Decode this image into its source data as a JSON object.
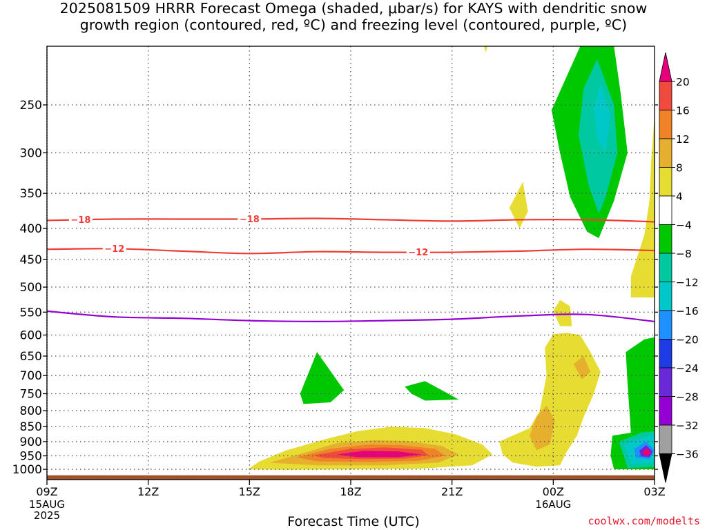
{
  "title_line1": "2025081509 HRRR Forecast Omega (shaded, μbar/s) for KAYS with dendritic snow",
  "title_line2": "growth region (contoured, red, ºC) and freezing level (contoured, purple, ºC)",
  "xlabel": "Forecast Time (UTC)",
  "credit": "coolwx.com/modelts",
  "colors": {
    "dgz_contour": "#ee3b36",
    "freezing_contour": "#9400d3",
    "terrain": "#a0522d",
    "grid": "#555555"
  },
  "chart_data": {
    "type": "heatmap",
    "x_axis": {
      "range_hours": [
        0,
        18
      ],
      "ticks": [
        {
          "hour": 0,
          "label": "09Z",
          "sub": [
            "15AUG",
            "2025"
          ]
        },
        {
          "hour": 3,
          "label": "12Z",
          "sub": []
        },
        {
          "hour": 6,
          "label": "15Z",
          "sub": []
        },
        {
          "hour": 9,
          "label": "18Z",
          "sub": []
        },
        {
          "hour": 12,
          "label": "21Z",
          "sub": []
        },
        {
          "hour": 15,
          "label": "00Z",
          "sub": [
            "16AUG"
          ]
        },
        {
          "hour": 18,
          "label": "03Z",
          "sub": []
        }
      ]
    },
    "y_axis": {
      "scale": "log",
      "range_hpa": [
        1040,
        200
      ],
      "ticks": [
        250,
        300,
        350,
        400,
        450,
        500,
        550,
        600,
        650,
        700,
        750,
        800,
        850,
        900,
        950,
        1000
      ],
      "surface_hpa": 1023
    },
    "colorbar": {
      "boundaries": [
        -36,
        -32,
        -28,
        -24,
        -20,
        -16,
        -12,
        -8,
        -4,
        4,
        8,
        12,
        16,
        20
      ],
      "labels": [
        "20",
        "16",
        "12",
        "8",
        "4",
        "−4",
        "−8",
        "−12",
        "−16",
        "−20",
        "−24",
        "−28",
        "−32",
        "−36"
      ],
      "colors": [
        "#000000",
        "#a0a0a0",
        "#9400d3",
        "#6a28d8",
        "#1e3ce6",
        "#1e90ff",
        "#00c8c8",
        "#00c8a0",
        "#00c800",
        "#ffffff",
        "#e6dc32",
        "#e6af2d",
        "#f08228",
        "#f04b3c",
        "#e6007a"
      ],
      "under_color": "#000000",
      "over_color": "#e6007a"
    },
    "omega_shapes": [
      {
        "color": "#e6dc32",
        "pts": [
          [
            5.95,
            1000
          ],
          [
            6.3,
            970
          ],
          [
            7.1,
            930
          ],
          [
            8.3,
            890
          ],
          [
            9.2,
            865
          ],
          [
            10.2,
            850
          ],
          [
            11.2,
            855
          ],
          [
            12.1,
            875
          ],
          [
            12.9,
            910
          ],
          [
            13.2,
            945
          ],
          [
            12.6,
            985
          ],
          [
            11,
            998
          ],
          [
            9,
            1000
          ],
          [
            7,
            1002
          ]
        ]
      },
      {
        "color": "#e6af2d",
        "pts": [
          [
            6.6,
            975
          ],
          [
            7.6,
            940
          ],
          [
            8.6,
            905
          ],
          [
            9.7,
            895
          ],
          [
            10.7,
            898
          ],
          [
            11.7,
            915
          ],
          [
            12.2,
            945
          ],
          [
            11.6,
            975
          ],
          [
            10,
            985
          ],
          [
            8,
            985
          ]
        ]
      },
      {
        "color": "#f08228",
        "pts": [
          [
            7.4,
            955
          ],
          [
            8.4,
            925
          ],
          [
            9.5,
            910
          ],
          [
            10.5,
            912
          ],
          [
            11.5,
            925
          ],
          [
            11.8,
            950
          ],
          [
            11,
            968
          ],
          [
            9.5,
            972
          ],
          [
            8,
            970
          ]
        ]
      },
      {
        "color": "#f04b3c",
        "pts": [
          [
            7.9,
            948
          ],
          [
            8.9,
            927
          ],
          [
            10,
            920
          ],
          [
            11.1,
            928
          ],
          [
            11.3,
            948
          ],
          [
            10.6,
            960
          ],
          [
            9.3,
            962
          ],
          [
            8.2,
            958
          ]
        ]
      },
      {
        "color": "#e6007a",
        "pts": [
          [
            8.6,
            945
          ],
          [
            9.4,
            932
          ],
          [
            10.4,
            934
          ],
          [
            11.1,
            945
          ],
          [
            10.4,
            955
          ],
          [
            9.2,
            955
          ]
        ]
      },
      {
        "color": "#e6dc32",
        "pts": [
          [
            13.4,
            900
          ],
          [
            14.3,
            855
          ],
          [
            14.6,
            800
          ],
          [
            14.8,
            700
          ],
          [
            14.75,
            630
          ],
          [
            15,
            598
          ],
          [
            15.4,
            595
          ],
          [
            15.8,
            600
          ],
          [
            16.1,
            640
          ],
          [
            16.4,
            690
          ],
          [
            16.2,
            750
          ],
          [
            15.9,
            820
          ],
          [
            15.7,
            880
          ],
          [
            15.4,
            935
          ],
          [
            15.2,
            985
          ],
          [
            14.5,
            990
          ],
          [
            13.8,
            975
          ],
          [
            13.5,
            945
          ]
        ]
      },
      {
        "color": "#e6af2d",
        "pts": [
          [
            14.3,
            880
          ],
          [
            14.5,
            820
          ],
          [
            14.8,
            785
          ],
          [
            15.05,
            830
          ],
          [
            14.9,
            910
          ],
          [
            14.5,
            930
          ]
        ]
      },
      {
        "color": "#e6af2d",
        "pts": [
          [
            15.6,
            670
          ],
          [
            15.9,
            650
          ],
          [
            16.1,
            690
          ],
          [
            15.85,
            710
          ]
        ]
      },
      {
        "color": "#e6dc32",
        "pts": [
          [
            15,
            548
          ],
          [
            15.2,
            525
          ],
          [
            15.5,
            538
          ],
          [
            15.55,
            580
          ],
          [
            15.2,
            580
          ]
        ]
      },
      {
        "color": "#00c800",
        "pts": [
          [
            7.5,
            750
          ],
          [
            8.0,
            640
          ],
          [
            8.8,
            740
          ],
          [
            8.4,
            775
          ],
          [
            7.6,
            780
          ]
        ]
      },
      {
        "color": "#00c800",
        "pts": [
          [
            10.6,
            730
          ],
          [
            11.2,
            715
          ],
          [
            11.7,
            740
          ],
          [
            12.2,
            767
          ],
          [
            11.2,
            770
          ],
          [
            10.8,
            750
          ]
        ]
      },
      {
        "color": "#e6dc32",
        "pts": [
          [
            12.8,
            185
          ],
          [
            13.2,
            185
          ],
          [
            13.0,
            205
          ]
        ]
      },
      {
        "color": "#e6dc32",
        "pts": [
          [
            13.7,
            370
          ],
          [
            14.1,
            335
          ],
          [
            14.25,
            375
          ],
          [
            14.0,
            400
          ]
        ]
      },
      {
        "color": "#00c800",
        "pts": [
          [
            15.8,
            200
          ],
          [
            16.8,
            200
          ],
          [
            17.0,
            240
          ],
          [
            17.2,
            300
          ],
          [
            16.8,
            360
          ],
          [
            16.35,
            415
          ],
          [
            16.0,
            405
          ],
          [
            15.5,
            355
          ],
          [
            15.2,
            300
          ],
          [
            14.95,
            255
          ]
        ]
      },
      {
        "color": "#00c8a0",
        "pts": [
          [
            16.3,
            210
          ],
          [
            16.8,
            250
          ],
          [
            16.9,
            300
          ],
          [
            16.55,
            355
          ],
          [
            16.35,
            378
          ],
          [
            16.05,
            340
          ],
          [
            15.75,
            280
          ],
          [
            15.9,
            235
          ]
        ]
      },
      {
        "color": "#00c8c8",
        "pts": [
          [
            16.4,
            230
          ],
          [
            16.7,
            260
          ],
          [
            16.55,
            300
          ],
          [
            16.3,
            285
          ],
          [
            16.2,
            255
          ]
        ]
      },
      {
        "color": "#e6dc32",
        "pts": [
          [
            17.9,
            310
          ],
          [
            18,
            260
          ],
          [
            18,
            520
          ],
          [
            17.3,
            520
          ],
          [
            17.3,
            480
          ],
          [
            17.7,
            410
          ],
          [
            17.85,
            360
          ]
        ]
      },
      {
        "color": "#00c800",
        "pts": [
          [
            17.3,
            870
          ],
          [
            17.2,
            720
          ],
          [
            17.15,
            640
          ],
          [
            17.7,
            610
          ],
          [
            18,
            605
          ],
          [
            18,
            1000
          ],
          [
            16.8,
            1000
          ],
          [
            16.7,
            950
          ],
          [
            16.75,
            880
          ]
        ]
      },
      {
        "color": "#00c8a0",
        "pts": [
          [
            16.95,
            900
          ],
          [
            17.6,
            870
          ],
          [
            18,
            865
          ],
          [
            18,
            990
          ],
          [
            17.2,
            995
          ]
        ]
      },
      {
        "color": "#00c8c8",
        "pts": [
          [
            17.1,
            910
          ],
          [
            17.7,
            885
          ],
          [
            18,
            882
          ],
          [
            18,
            975
          ],
          [
            17.3,
            980
          ]
        ]
      },
      {
        "color": "#1e90ff",
        "pts": [
          [
            17.4,
            925
          ],
          [
            17.75,
            900
          ],
          [
            18.0,
            930
          ],
          [
            17.85,
            962
          ],
          [
            17.45,
            958
          ]
        ]
      },
      {
        "color": "#6a28d8",
        "pts": [
          [
            17.55,
            932
          ],
          [
            17.75,
            912
          ],
          [
            17.95,
            935
          ],
          [
            17.85,
            955
          ],
          [
            17.6,
            952
          ]
        ]
      },
      {
        "color": "#e6007a",
        "pts": [
          [
            17.65,
            936
          ],
          [
            17.77,
            922
          ],
          [
            17.9,
            937
          ],
          [
            17.82,
            950
          ],
          [
            17.7,
            948
          ]
        ]
      }
    ],
    "contours": [
      {
        "name": "-18",
        "color": "#ee3b36",
        "labels": [
          {
            "text": "−18",
            "hour": 1.0
          },
          {
            "text": "−18",
            "hour": 6.0
          }
        ],
        "pts": [
          [
            0,
            388
          ],
          [
            2,
            386
          ],
          [
            4,
            386
          ],
          [
            6,
            386
          ],
          [
            8,
            385
          ],
          [
            10,
            387
          ],
          [
            12,
            389
          ],
          [
            14,
            387
          ],
          [
            16,
            387
          ],
          [
            18,
            390
          ]
        ]
      },
      {
        "name": "-12",
        "color": "#ee3b36",
        "labels": [
          {
            "text": "−12",
            "hour": 2.0
          },
          {
            "text": "−12",
            "hour": 11.0
          }
        ],
        "pts": [
          [
            0,
            433
          ],
          [
            2,
            432
          ],
          [
            4,
            436
          ],
          [
            6,
            440
          ],
          [
            8,
            437
          ],
          [
            10,
            438
          ],
          [
            12,
            438
          ],
          [
            14,
            436
          ],
          [
            16,
            433
          ],
          [
            18,
            435
          ]
        ]
      },
      {
        "name": "0",
        "color": "#9400d3",
        "labels": [],
        "pts": [
          [
            0,
            548
          ],
          [
            2,
            560
          ],
          [
            4,
            563
          ],
          [
            6,
            568
          ],
          [
            8,
            570
          ],
          [
            10,
            568
          ],
          [
            12,
            565
          ],
          [
            14,
            558
          ],
          [
            16,
            555
          ],
          [
            18,
            570
          ]
        ]
      }
    ]
  }
}
